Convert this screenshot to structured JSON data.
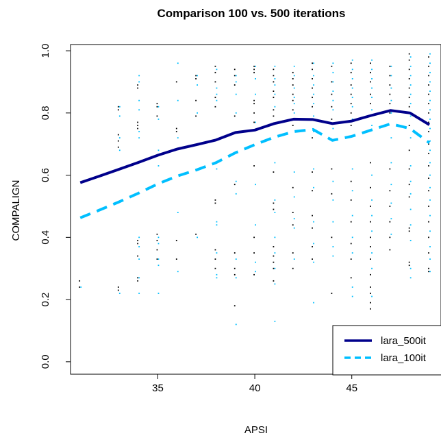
{
  "colors": {
    "series_500": "#00008B",
    "series_100": "#00BFFF",
    "points_500": "#000000",
    "points_100": "#00BFFF"
  },
  "chart_data": {
    "type": "line",
    "title": "Comparison 100 vs. 500 iterations",
    "xlabel": "APSI",
    "ylabel": "COMPALIGN",
    "xlim": [
      30.5,
      49.6
    ],
    "ylim": [
      -0.04,
      1.02
    ],
    "xticks": [
      35,
      40,
      45
    ],
    "yticks": [
      0.0,
      0.2,
      0.4,
      0.6,
      0.8,
      1.0
    ],
    "xtick_labels": [
      "35",
      "40",
      "45"
    ],
    "ytick_labels": [
      "0.0",
      "0.2",
      "0.4",
      "0.6",
      "0.8",
      "1.0"
    ],
    "grid": false,
    "legend_position": "bottom-right",
    "series": [
      {
        "name": "lara_500it",
        "style": "solid",
        "color": "#00008B",
        "x": [
          31,
          32,
          33,
          34,
          35,
          36,
          37,
          38,
          39,
          40,
          41,
          42,
          43,
          44,
          45,
          46,
          47,
          48,
          49
        ],
        "y": [
          0.576,
          0.597,
          0.619,
          0.641,
          0.664,
          0.684,
          0.698,
          0.713,
          0.737,
          0.745,
          0.766,
          0.78,
          0.779,
          0.766,
          0.774,
          0.792,
          0.808,
          0.8,
          0.762
        ]
      },
      {
        "name": "lara_100it",
        "style": "dashed",
        "color": "#00BFFF",
        "x": [
          31,
          32,
          33,
          34,
          35,
          36,
          37,
          38,
          39,
          40,
          41,
          42,
          43,
          44,
          45,
          46,
          47,
          48,
          49
        ],
        "y": [
          0.463,
          0.488,
          0.514,
          0.542,
          0.572,
          0.597,
          0.617,
          0.64,
          0.672,
          0.698,
          0.722,
          0.74,
          0.747,
          0.712,
          0.725,
          0.745,
          0.765,
          0.75,
          0.704
        ]
      }
    ],
    "scatter_points": [
      {
        "x": 31,
        "y": [
          0.26,
          0.24
        ],
        "series": "lara_500it"
      },
      {
        "x": 31,
        "y": [
          0.24
        ],
        "series": "lara_100it"
      },
      {
        "x": 33,
        "y": [
          0.82,
          0.81,
          0.73,
          0.71,
          0.69,
          0.24,
          0.23
        ],
        "series": "lara_500it"
      },
      {
        "x": 33,
        "y": [
          0.82,
          0.79,
          0.72,
          0.68,
          0.22
        ],
        "series": "lara_100it"
      },
      {
        "x": 34,
        "y": [
          0.89,
          0.88,
          0.77,
          0.76,
          0.75,
          0.39,
          0.38,
          0.34,
          0.27,
          0.26
        ],
        "series": "lara_500it"
      },
      {
        "x": 34,
        "y": [
          0.92,
          0.9,
          0.84,
          0.81,
          0.74,
          0.72,
          0.4,
          0.37,
          0.33,
          0.27,
          0.22
        ],
        "series": "lara_100it"
      },
      {
        "x": 35,
        "y": [
          0.83,
          0.82,
          0.79,
          0.41,
          0.39,
          0.36,
          0.33
        ],
        "series": "lara_500it"
      },
      {
        "x": 35,
        "y": [
          0.82,
          0.78,
          0.68,
          0.63,
          0.4,
          0.38,
          0.33,
          0.31,
          0.22
        ],
        "series": "lara_100it"
      },
      {
        "x": 36,
        "y": [
          0.9,
          0.75,
          0.74,
          0.39,
          0.33
        ],
        "series": "lara_500it"
      },
      {
        "x": 36,
        "y": [
          0.96,
          0.84,
          0.72,
          0.48,
          0.29
        ],
        "series": "lara_100it"
      },
      {
        "x": 37,
        "y": [
          0.92,
          0.91,
          0.84,
          0.79,
          0.41
        ],
        "series": "lara_500it"
      },
      {
        "x": 37,
        "y": [
          0.92,
          0.89,
          0.8,
          0.4
        ],
        "series": "lara_100it"
      },
      {
        "x": 38,
        "y": [
          0.95,
          0.93,
          0.9,
          0.85,
          0.82,
          0.52,
          0.51,
          0.36,
          0.33,
          0.3
        ],
        "series": "lara_500it"
      },
      {
        "x": 38,
        "y": [
          0.94,
          0.88,
          0.86,
          0.84,
          0.62,
          0.45,
          0.44,
          0.35,
          0.28,
          0.27
        ],
        "series": "lara_100it"
      },
      {
        "x": 39,
        "y": [
          0.94,
          0.92,
          0.89,
          0.79,
          0.57,
          0.35,
          0.3,
          0.28,
          0.18
        ],
        "series": "lara_500it"
      },
      {
        "x": 39,
        "y": [
          0.92,
          0.9,
          0.86,
          0.8,
          0.58,
          0.54,
          0.33,
          0.27,
          0.12
        ],
        "series": "lara_100it"
      },
      {
        "x": 40,
        "y": [
          0.95,
          0.94,
          0.93,
          0.84,
          0.83,
          0.8,
          0.77,
          0.63,
          0.4,
          0.35,
          0.28
        ],
        "series": "lara_500it"
      },
      {
        "x": 40,
        "y": [
          0.95,
          0.91,
          0.86,
          0.77,
          0.57,
          0.44,
          0.32,
          0.29
        ],
        "series": "lara_100it"
      },
      {
        "x": 41,
        "y": [
          0.94,
          0.92,
          0.9,
          0.87,
          0.85,
          0.81,
          0.79,
          0.61,
          0.51,
          0.49,
          0.37,
          0.34,
          0.32,
          0.3,
          0.26
        ],
        "series": "lara_500it"
      },
      {
        "x": 41,
        "y": [
          0.95,
          0.91,
          0.89,
          0.86,
          0.82,
          0.64,
          0.52,
          0.48,
          0.4,
          0.35,
          0.3,
          0.25,
          0.13
        ],
        "series": "lara_100it"
      },
      {
        "x": 42,
        "y": [
          0.93,
          0.91,
          0.89,
          0.86,
          0.84,
          0.81,
          0.76,
          0.56,
          0.48,
          0.44,
          0.35,
          0.3
        ],
        "series": "lara_500it"
      },
      {
        "x": 42,
        "y": [
          0.95,
          0.92,
          0.88,
          0.85,
          0.83,
          0.8,
          0.61,
          0.53,
          0.46,
          0.43,
          0.33
        ],
        "series": "lara_100it"
      },
      {
        "x": 43,
        "y": [
          0.96,
          0.94,
          0.91,
          0.88,
          0.85,
          0.82,
          0.78,
          0.72,
          0.61,
          0.55,
          0.47,
          0.43,
          0.37,
          0.33
        ],
        "series": "lara_500it"
      },
      {
        "x": 43,
        "y": [
          0.96,
          0.92,
          0.89,
          0.86,
          0.83,
          0.79,
          0.74,
          0.62,
          0.56,
          0.45,
          0.38,
          0.32,
          0.19
        ],
        "series": "lara_100it"
      },
      {
        "x": 44,
        "y": [
          0.96,
          0.93,
          0.9,
          0.87,
          0.84,
          0.81,
          0.75,
          0.58,
          0.52,
          0.45,
          0.37,
          0.34
        ],
        "series": "lara_100it"
      },
      {
        "x": 44,
        "y": [
          0.95,
          0.9,
          0.86,
          0.82,
          0.78,
          0.62,
          0.54,
          0.4,
          0.22
        ],
        "series": "lara_500it"
      },
      {
        "x": 45,
        "y": [
          0.96,
          0.93,
          0.89,
          0.86,
          0.83,
          0.8,
          0.76,
          0.58,
          0.52,
          0.45,
          0.38,
          0.33,
          0.27
        ],
        "series": "lara_500it"
      },
      {
        "x": 45,
        "y": [
          0.97,
          0.94,
          0.91,
          0.88,
          0.85,
          0.82,
          0.78,
          0.62,
          0.55,
          0.47,
          0.4,
          0.35,
          0.24,
          0.21
        ],
        "series": "lara_100it"
      },
      {
        "x": 46,
        "y": [
          0.96,
          0.93,
          0.9,
          0.86,
          0.83,
          0.79,
          0.64,
          0.56,
          0.5,
          0.45,
          0.4,
          0.37,
          0.33,
          0.28,
          0.24,
          0.22,
          0.19,
          0.17
        ],
        "series": "lara_500it"
      },
      {
        "x": 46,
        "y": [
          0.97,
          0.94,
          0.91,
          0.88,
          0.85,
          0.81,
          0.76,
          0.6,
          0.52,
          0.47,
          0.42,
          0.35,
          0.3,
          0.21
        ],
        "series": "lara_100it"
      },
      {
        "x": 47,
        "y": [
          0.95,
          0.92,
          0.89,
          0.86,
          0.83,
          0.8,
          0.62,
          0.55,
          0.5,
          0.45,
          0.4,
          0.36
        ],
        "series": "lara_500it"
      },
      {
        "x": 47,
        "y": [
          0.95,
          0.92,
          0.88,
          0.84,
          0.8,
          0.72,
          0.64,
          0.57,
          0.51,
          0.46,
          0.41
        ],
        "series": "lara_100it"
      },
      {
        "x": 48,
        "y": [
          0.99,
          0.97,
          0.94,
          0.91,
          0.88,
          0.85,
          0.82,
          0.76,
          0.68,
          0.62,
          0.57,
          0.53,
          0.43,
          0.42,
          0.32,
          0.31
        ],
        "series": "lara_500it"
      },
      {
        "x": 48,
        "y": [
          0.98,
          0.95,
          0.92,
          0.89,
          0.86,
          0.83,
          0.79,
          0.72,
          0.63,
          0.58,
          0.54,
          0.49,
          0.44,
          0.39,
          0.3,
          0.27
        ],
        "series": "lara_100it"
      },
      {
        "x": 49,
        "y": [
          0.98,
          0.95,
          0.92,
          0.89,
          0.86,
          0.83,
          0.8,
          0.77,
          0.74,
          0.7,
          0.67,
          0.63,
          0.59,
          0.55,
          0.5,
          0.45,
          0.4,
          0.35,
          0.3,
          0.29
        ],
        "series": "lara_500it"
      },
      {
        "x": 49,
        "y": [
          0.99,
          0.96,
          0.93,
          0.9,
          0.87,
          0.84,
          0.81,
          0.78,
          0.75,
          0.71,
          0.68,
          0.64,
          0.6,
          0.56,
          0.52,
          0.47,
          0.42,
          0.37,
          0.33,
          0.29
        ],
        "series": "lara_100it"
      }
    ]
  }
}
